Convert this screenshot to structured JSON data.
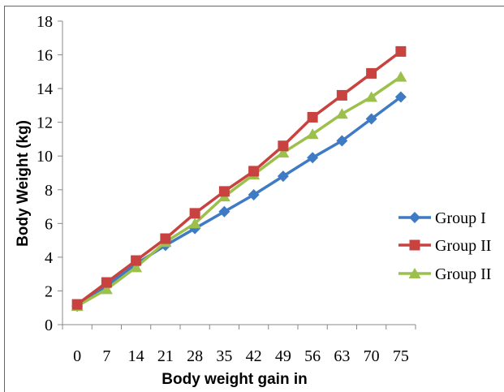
{
  "chart_data": {
    "type": "line",
    "title": "",
    "xlabel": "Body weight gain in",
    "ylabel": "Body Weight (kg)",
    "categories": [
      "0",
      "7",
      "14",
      "21",
      "28",
      "35",
      "42",
      "49",
      "56",
      "63",
      "70",
      "75"
    ],
    "ylim": [
      0,
      18
    ],
    "yticks": [
      "0",
      "2",
      "4",
      "6",
      "8",
      "10",
      "12",
      "14",
      "16",
      "18"
    ],
    "grid": false,
    "legend_position": "right",
    "series": [
      {
        "name": "Group I",
        "color": "#3F7BC4",
        "marker": "diamond",
        "values": [
          1.1,
          2.3,
          3.6,
          4.7,
          5.7,
          6.7,
          7.7,
          8.8,
          9.9,
          10.9,
          12.2,
          13.5
        ]
      },
      {
        "name": "Group II",
        "color": "#C8423F",
        "marker": "square",
        "values": [
          1.2,
          2.5,
          3.8,
          5.1,
          6.6,
          7.9,
          9.1,
          10.6,
          12.3,
          13.6,
          14.9,
          16.2
        ]
      },
      {
        "name": "Group II",
        "color": "#9CC04C",
        "marker": "triangle",
        "values": [
          1.1,
          2.1,
          3.4,
          4.9,
          6.0,
          7.6,
          8.9,
          10.2,
          11.3,
          12.5,
          13.5,
          14.7
        ]
      }
    ]
  }
}
